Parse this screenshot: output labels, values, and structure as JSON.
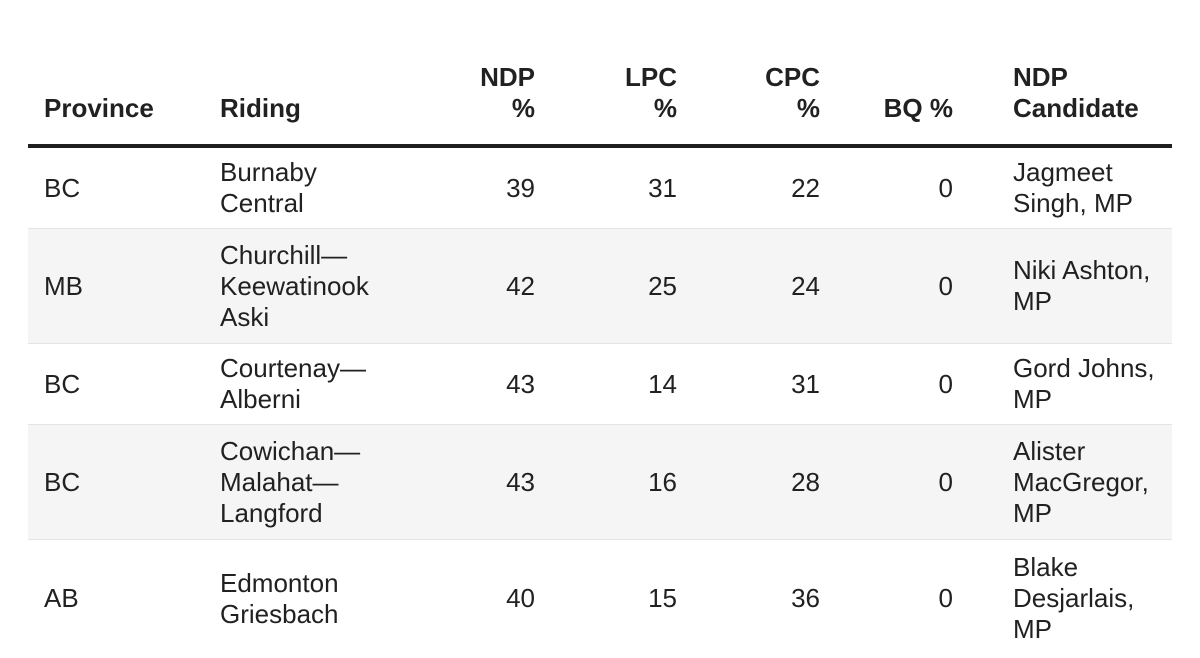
{
  "chart_data": {
    "type": "table",
    "columns": [
      {
        "label": "Province",
        "align": "left"
      },
      {
        "label": "Riding",
        "align": "left"
      },
      {
        "label": "NDP\n%",
        "align": "right"
      },
      {
        "label": "LPC\n%",
        "align": "right"
      },
      {
        "label": "CPC\n%",
        "align": "right"
      },
      {
        "label": "BQ %",
        "align": "right"
      },
      {
        "label": "NDP\nCandidate",
        "align": "left"
      }
    ],
    "rows": [
      {
        "province": "BC",
        "riding": "Burnaby Central",
        "ndp_pct": "39",
        "lpc_pct": "31",
        "cpc_pct": "22",
        "bq_pct": "0",
        "ndp_candidate": "Jagmeet Singh, MP"
      },
      {
        "province": "MB",
        "riding": "Churchill—Keewatinook Aski",
        "ndp_pct": "42",
        "lpc_pct": "25",
        "cpc_pct": "24",
        "bq_pct": "0",
        "ndp_candidate": "Niki Ashton, MP"
      },
      {
        "province": "BC",
        "riding": "Courtenay—Alberni",
        "ndp_pct": "43",
        "lpc_pct": "14",
        "cpc_pct": "31",
        "bq_pct": "0",
        "ndp_candidate": "Gord Johns, MP"
      },
      {
        "province": "BC",
        "riding": "Cowichan—Malahat—Langford",
        "ndp_pct": "43",
        "lpc_pct": "16",
        "cpc_pct": "28",
        "bq_pct": "0",
        "ndp_candidate": "Alister MacGregor, MP"
      },
      {
        "province": "AB",
        "riding": "Edmonton Griesbach",
        "ndp_pct": "40",
        "lpc_pct": "15",
        "cpc_pct": "36",
        "bq_pct": "0",
        "ndp_candidate": "Blake Desjarlais, MP"
      }
    ]
  },
  "colors": {
    "background": "#ffffff",
    "text": "#212121",
    "header_rule": "#1f1f1f",
    "row_stripe": "#f5f5f5",
    "row_divider": "#e4e4e4"
  }
}
